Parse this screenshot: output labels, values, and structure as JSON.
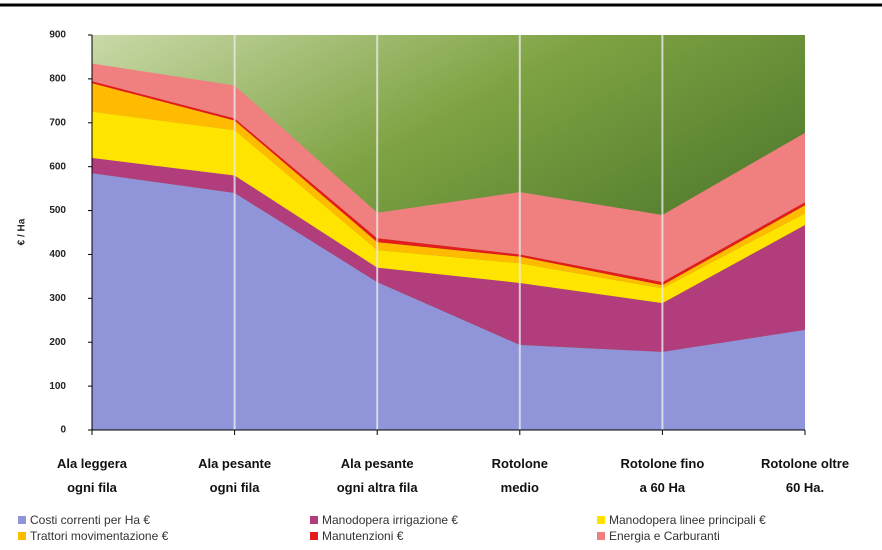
{
  "chart_data": {
    "type": "stacked-area",
    "y_label": "€ / Ha",
    "categories": [
      "Ala leggera\nogni fila",
      "Ala pesante\nogni fila",
      "Ala pesante\nogni altra fila",
      "Rotolone\nmedio",
      "Rotolone fino\na 60 Ha",
      "Rotolone oltre\n60 Ha."
    ],
    "series": [
      {
        "name": "Costi correnti per Ha €",
        "color": "#8f95d8",
        "values": [
          585,
          540,
          337,
          194,
          178,
          228
        ]
      },
      {
        "name": "Manodopera irrigazione €",
        "color": "#b23d7d",
        "values": [
          35,
          40,
          33,
          141,
          111,
          239
        ]
      },
      {
        "name": "Manodopera linee principali €",
        "color": "#ffe400",
        "values": [
          105,
          103,
          40,
          45,
          34,
          27
        ]
      },
      {
        "name": "Trattori movimentazione €",
        "color": "#ffbb00",
        "values": [
          65,
          22,
          18,
          15,
          7,
          18
        ]
      },
      {
        "name": "Manutenzioni €",
        "color": "#e41c1c",
        "values": [
          5,
          5,
          9,
          5,
          7,
          7
        ]
      },
      {
        "name": "Energia e Carburanti",
        "color": "#f08080",
        "values": [
          40,
          75,
          58,
          142,
          153,
          158
        ]
      }
    ],
    "ylim": [
      0,
      900
    ],
    "yticks": [
      0,
      100,
      200,
      300,
      400,
      500,
      600,
      700,
      800,
      900
    ],
    "grid": true
  }
}
